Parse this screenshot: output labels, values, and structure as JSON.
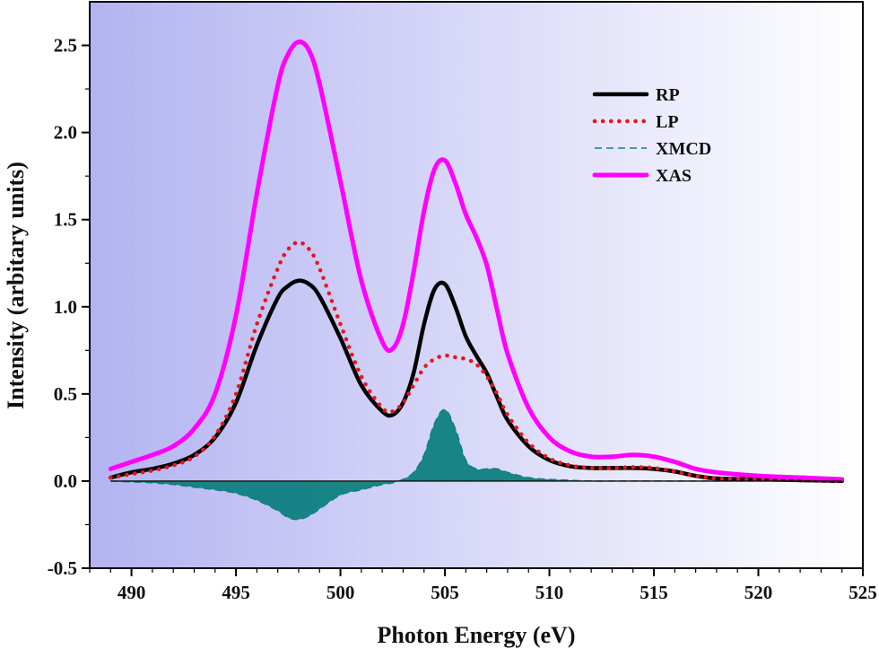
{
  "chart_data": {
    "type": "line",
    "xlabel": "Photon Energy (eV)",
    "ylabel": "Intensity (arbitary units)",
    "xlim": [
      488,
      525
    ],
    "ylim": [
      -0.5,
      2.75
    ],
    "xticks": [
      490,
      495,
      500,
      505,
      510,
      515,
      520,
      525
    ],
    "yticks": [
      -0.5,
      0.0,
      0.5,
      1.0,
      1.5,
      2.0,
      2.5
    ],
    "ytick_labels": [
      "-0.5",
      "0.0",
      "0.5",
      "1.0",
      "1.5",
      "2.0",
      "2.5"
    ],
    "grid": false,
    "legend_position": "top-right",
    "background": "horizontal gradient, lavender to white",
    "colors": {
      "bg_left": "#b3b3f2",
      "bg_right": "#ffffff"
    },
    "x": [
      489,
      490,
      491,
      492,
      493,
      494,
      495,
      496,
      497,
      497.5,
      498,
      498.5,
      499,
      500,
      501,
      502,
      502.5,
      503,
      503.5,
      504,
      504.5,
      505,
      505.5,
      506,
      506.5,
      507,
      507.5,
      508,
      509,
      510,
      511,
      512,
      513,
      514,
      515,
      516,
      517,
      518,
      520,
      522,
      524
    ],
    "series": [
      {
        "name": "RP",
        "color": "#000000",
        "style": "solid",
        "values": [
          0.02,
          0.05,
          0.07,
          0.1,
          0.15,
          0.25,
          0.45,
          0.78,
          1.05,
          1.12,
          1.15,
          1.13,
          1.06,
          0.82,
          0.55,
          0.4,
          0.38,
          0.45,
          0.62,
          0.9,
          1.1,
          1.13,
          1.0,
          0.83,
          0.72,
          0.62,
          0.48,
          0.35,
          0.2,
          0.12,
          0.085,
          0.075,
          0.075,
          0.075,
          0.07,
          0.055,
          0.03,
          0.015,
          0.01,
          0.005,
          0.0
        ]
      },
      {
        "name": "LP",
        "color": "#e8151b",
        "style": "dotted",
        "values": [
          0.02,
          0.04,
          0.06,
          0.09,
          0.14,
          0.26,
          0.5,
          0.9,
          1.22,
          1.33,
          1.37,
          1.33,
          1.22,
          0.9,
          0.6,
          0.42,
          0.4,
          0.45,
          0.55,
          0.65,
          0.7,
          0.72,
          0.71,
          0.7,
          0.67,
          0.6,
          0.5,
          0.38,
          0.22,
          0.13,
          0.09,
          0.075,
          0.075,
          0.08,
          0.075,
          0.055,
          0.03,
          0.015,
          0.01,
          0.005,
          0.0
        ]
      },
      {
        "name": "XMCD",
        "color": "#0e8080",
        "style": "dashed",
        "values": [
          0.0,
          -0.005,
          -0.01,
          -0.02,
          -0.035,
          -0.05,
          -0.07,
          -0.11,
          -0.17,
          -0.21,
          -0.22,
          -0.2,
          -0.16,
          -0.08,
          -0.05,
          -0.02,
          -0.01,
          0.01,
          0.05,
          0.15,
          0.33,
          0.41,
          0.3,
          0.12,
          0.07,
          0.07,
          0.07,
          0.05,
          0.02,
          0.01,
          0.005,
          0.0,
          0.0,
          0.0,
          0.0,
          0.0,
          0.0,
          0.0,
          0.0,
          0.0,
          0.0
        ]
      },
      {
        "name": "XAS",
        "color": "#ff00ff",
        "style": "solid",
        "values": [
          0.07,
          0.11,
          0.15,
          0.2,
          0.3,
          0.5,
          0.95,
          1.65,
          2.27,
          2.45,
          2.52,
          2.47,
          2.28,
          1.72,
          1.15,
          0.8,
          0.76,
          0.9,
          1.2,
          1.55,
          1.79,
          1.84,
          1.71,
          1.53,
          1.4,
          1.24,
          0.98,
          0.73,
          0.42,
          0.25,
          0.17,
          0.14,
          0.14,
          0.15,
          0.14,
          0.11,
          0.07,
          0.05,
          0.03,
          0.02,
          0.01
        ]
      }
    ]
  }
}
